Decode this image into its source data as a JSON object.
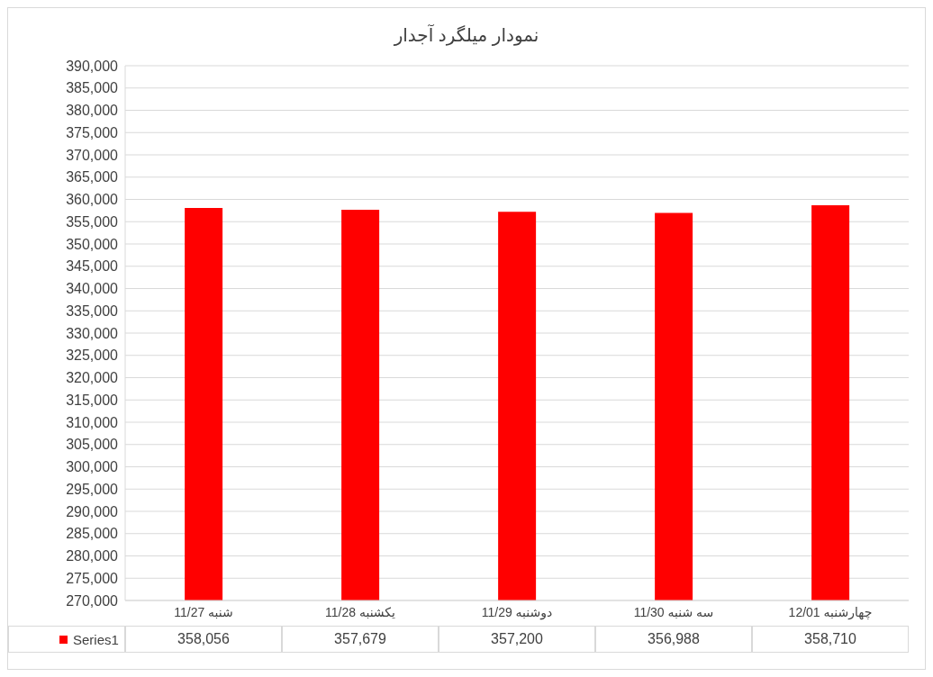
{
  "chart_data": {
    "type": "bar",
    "title": "نمودار میلگرد آجدار",
    "categories": [
      "شنبه 11/27",
      "یکشنبه 11/28",
      "دوشنبه 11/29",
      "سه شنبه 11/30",
      "چهارشنبه 12/01"
    ],
    "series": [
      {
        "name": "Series1",
        "color": "#ff0000",
        "values": [
          358056,
          357679,
          357200,
          356988,
          358710
        ],
        "value_labels": [
          "358,056",
          "357,679",
          "357,200",
          "356,988",
          "358,710"
        ]
      }
    ],
    "ylim": [
      270000,
      390000
    ],
    "yticks": [
      {
        "value": 270000,
        "label": "270,000"
      },
      {
        "value": 275000,
        "label": "275,000"
      },
      {
        "value": 280000,
        "label": "280,000"
      },
      {
        "value": 285000,
        "label": "285,000"
      },
      {
        "value": 290000,
        "label": "290,000"
      },
      {
        "value": 295000,
        "label": "295,000"
      },
      {
        "value": 300000,
        "label": "300,000"
      },
      {
        "value": 305000,
        "label": "305,000"
      },
      {
        "value": 310000,
        "label": "310,000"
      },
      {
        "value": 315000,
        "label": "315,000"
      },
      {
        "value": 320000,
        "label": "320,000"
      },
      {
        "value": 325000,
        "label": "325,000"
      },
      {
        "value": 330000,
        "label": "330,000"
      },
      {
        "value": 335000,
        "label": "335,000"
      },
      {
        "value": 340000,
        "label": "340,000"
      },
      {
        "value": 345000,
        "label": "345,000"
      },
      {
        "value": 350000,
        "label": "350,000"
      },
      {
        "value": 355000,
        "label": "355,000"
      },
      {
        "value": 360000,
        "label": "360,000"
      },
      {
        "value": 365000,
        "label": "365,000"
      },
      {
        "value": 370000,
        "label": "370,000"
      },
      {
        "value": 375000,
        "label": "375,000"
      },
      {
        "value": 380000,
        "label": "380,000"
      },
      {
        "value": 385000,
        "label": "385,000"
      },
      {
        "value": 390000,
        "label": "390,000"
      }
    ],
    "grid": "y",
    "legend": "bottom"
  }
}
